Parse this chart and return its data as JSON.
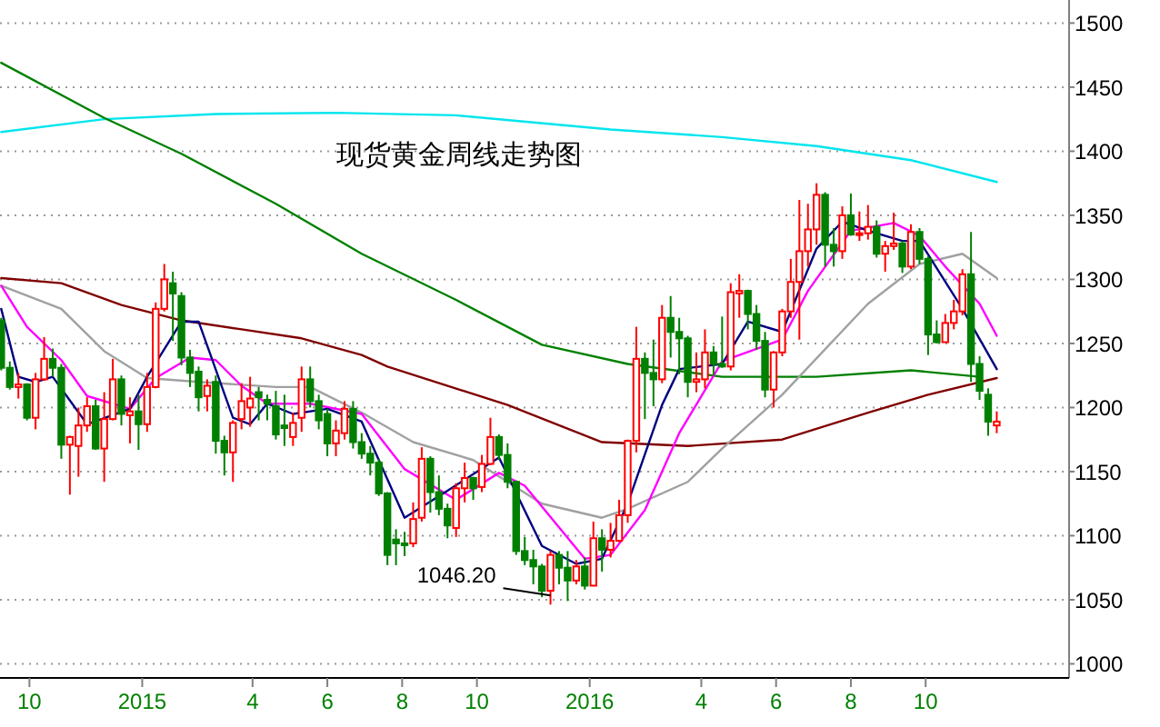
{
  "chart_data": {
    "type": "candlestick",
    "title": "现货黄金周线走势图",
    "xlim": [
      "2014-09-07",
      "2017-01-26"
    ],
    "ylim": [
      989,
      1518
    ],
    "xticks": [
      {
        "value": "2014-10-01",
        "label": "10"
      },
      {
        "value": "2015-01-01",
        "label": "2015"
      },
      {
        "value": "2015-04-01",
        "label": "4"
      },
      {
        "value": "2015-06-01",
        "label": "6"
      },
      {
        "value": "2015-08-01",
        "label": "8"
      },
      {
        "value": "2015-10-01",
        "label": "10"
      },
      {
        "value": "2016-01-01",
        "label": "2016"
      },
      {
        "value": "2016-04-01",
        "label": "4"
      },
      {
        "value": "2016-06-01",
        "label": "6"
      },
      {
        "value": "2016-08-01",
        "label": "8"
      },
      {
        "value": "2016-10-01",
        "label": "10"
      }
    ],
    "yticks": [
      1000,
      1050,
      1100,
      1150,
      1200,
      1250,
      1300,
      1350,
      1400,
      1450,
      1500
    ],
    "grid": "y",
    "annotations": [
      {
        "text": "1046.20",
        "x": "2015-11-30",
        "y": 1046.2
      }
    ],
    "x": [
      "2014-09-08",
      "2014-09-15",
      "2014-09-22",
      "2014-09-29",
      "2014-10-06",
      "2014-10-13",
      "2014-10-20",
      "2014-10-27",
      "2014-11-03",
      "2014-11-10",
      "2014-11-17",
      "2014-11-24",
      "2014-12-01",
      "2014-12-08",
      "2014-12-15",
      "2014-12-22",
      "2014-12-29",
      "2015-01-05",
      "2015-01-12",
      "2015-01-19",
      "2015-01-26",
      "2015-02-02",
      "2015-02-09",
      "2015-02-16",
      "2015-02-23",
      "2015-03-02",
      "2015-03-09",
      "2015-03-16",
      "2015-03-23",
      "2015-03-30",
      "2015-04-06",
      "2015-04-13",
      "2015-04-20",
      "2015-04-27",
      "2015-05-04",
      "2015-05-11",
      "2015-05-18",
      "2015-05-25",
      "2015-06-01",
      "2015-06-08",
      "2015-06-15",
      "2015-06-22",
      "2015-06-29",
      "2015-07-06",
      "2015-07-13",
      "2015-07-20",
      "2015-07-27",
      "2015-08-03",
      "2015-08-10",
      "2015-08-17",
      "2015-08-24",
      "2015-08-31",
      "2015-09-07",
      "2015-09-14",
      "2015-09-21",
      "2015-09-28",
      "2015-10-05",
      "2015-10-12",
      "2015-10-19",
      "2015-10-26",
      "2015-11-02",
      "2015-11-09",
      "2015-11-16",
      "2015-11-23",
      "2015-11-30",
      "2015-12-07",
      "2015-12-14",
      "2015-12-21",
      "2015-12-28",
      "2016-01-04",
      "2016-01-11",
      "2016-01-18",
      "2016-01-25",
      "2016-02-01",
      "2016-02-08",
      "2016-02-15",
      "2016-02-22",
      "2016-02-29",
      "2016-03-07",
      "2016-03-14",
      "2016-03-21",
      "2016-03-28",
      "2016-04-04",
      "2016-04-11",
      "2016-04-18",
      "2016-04-25",
      "2016-05-02",
      "2016-05-09",
      "2016-05-16",
      "2016-05-23",
      "2016-05-30",
      "2016-06-06",
      "2016-06-13",
      "2016-06-20",
      "2016-06-27",
      "2016-07-04",
      "2016-07-11",
      "2016-07-18",
      "2016-07-25",
      "2016-08-01",
      "2016-08-08",
      "2016-08-15",
      "2016-08-22",
      "2016-08-29",
      "2016-09-05",
      "2016-09-12",
      "2016-09-19",
      "2016-09-26",
      "2016-10-03",
      "2016-10-10",
      "2016-10-17",
      "2016-10-24",
      "2016-10-31",
      "2016-11-07",
      "2016-11-14",
      "2016-11-21",
      "2016-11-28"
    ],
    "ohlc": [
      [
        1268,
        1270,
        1229,
        1231
      ],
      [
        1231,
        1236,
        1214,
        1216
      ],
      [
        1216,
        1227,
        1207,
        1218
      ],
      [
        1218,
        1219,
        1190,
        1192
      ],
      [
        1192,
        1227,
        1183,
        1222
      ],
      [
        1222,
        1255,
        1221,
        1238
      ],
      [
        1238,
        1246,
        1224,
        1231
      ],
      [
        1231,
        1234,
        1160,
        1171
      ],
      [
        1171,
        1178,
        1132,
        1177
      ],
      [
        1170,
        1200,
        1146,
        1186
      ],
      [
        1186,
        1208,
        1181,
        1201
      ],
      [
        1201,
        1206,
        1167,
        1168
      ],
      [
        1168,
        1212,
        1142,
        1191
      ],
      [
        1191,
        1238,
        1190,
        1222
      ],
      [
        1222,
        1225,
        1186,
        1195
      ],
      [
        1194,
        1208,
        1172,
        1197
      ],
      [
        1197,
        1210,
        1167,
        1187
      ],
      [
        1187,
        1227,
        1181,
        1216
      ],
      [
        1216,
        1282,
        1215,
        1277
      ],
      [
        1277,
        1312,
        1275,
        1300
      ],
      [
        1297,
        1306,
        1252,
        1289
      ],
      [
        1287,
        1290,
        1233,
        1239
      ],
      [
        1239,
        1245,
        1216,
        1227
      ],
      [
        1228,
        1232,
        1197,
        1208
      ],
      [
        1209,
        1222,
        1197,
        1217
      ],
      [
        1220,
        1225,
        1164,
        1174
      ],
      [
        1174,
        1178,
        1147,
        1165
      ],
      [
        1165,
        1190,
        1142,
        1188
      ],
      [
        1191,
        1219,
        1183,
        1205
      ],
      [
        1200,
        1224,
        1185,
        1207
      ],
      [
        1212,
        1216,
        1190,
        1208
      ],
      [
        1206,
        1210,
        1190,
        1203
      ],
      [
        1201,
        1213,
        1175,
        1179
      ],
      [
        1186,
        1210,
        1170,
        1184
      ],
      [
        1177,
        1196,
        1170,
        1188
      ],
      [
        1192,
        1232,
        1181,
        1222
      ],
      [
        1222,
        1232,
        1200,
        1205
      ],
      [
        1205,
        1210,
        1183,
        1190
      ],
      [
        1195,
        1199,
        1162,
        1172
      ],
      [
        1172,
        1190,
        1162,
        1182
      ],
      [
        1180,
        1205,
        1175,
        1199
      ],
      [
        1199,
        1205,
        1168,
        1173
      ],
      [
        1173,
        1180,
        1160,
        1164
      ],
      [
        1164,
        1170,
        1147,
        1157
      ],
      [
        1157,
        1160,
        1131,
        1133
      ],
      [
        1133,
        1134,
        1077,
        1085
      ],
      [
        1097,
        1105,
        1077,
        1094
      ],
      [
        1094,
        1103,
        1084,
        1093
      ],
      [
        1094,
        1126,
        1091,
        1113
      ],
      [
        1114,
        1169,
        1111,
        1160
      ],
      [
        1160,
        1162,
        1118,
        1134
      ],
      [
        1134,
        1147,
        1116,
        1121
      ],
      [
        1121,
        1125,
        1098,
        1108
      ],
      [
        1106,
        1141,
        1099,
        1137
      ],
      [
        1137,
        1157,
        1126,
        1145
      ],
      [
        1145,
        1146,
        1128,
        1137
      ],
      [
        1138,
        1163,
        1134,
        1156
      ],
      [
        1156,
        1192,
        1155,
        1177
      ],
      [
        1177,
        1179,
        1159,
        1163
      ],
      [
        1163,
        1172,
        1137,
        1142
      ],
      [
        1142,
        1143,
        1085,
        1088
      ],
      [
        1088,
        1099,
        1077,
        1081
      ],
      [
        1081,
        1089,
        1062,
        1076
      ],
      [
        1076,
        1078,
        1052,
        1057
      ],
      [
        1057,
        1088,
        1046.2,
        1085
      ],
      [
        1085,
        1088,
        1062,
        1075
      ],
      [
        1075,
        1088,
        1049,
        1065
      ],
      [
        1065,
        1081,
        1062,
        1076
      ],
      [
        1076,
        1083,
        1058,
        1061
      ],
      [
        1061,
        1111,
        1061,
        1098
      ],
      [
        1098,
        1105,
        1072,
        1089
      ],
      [
        1089,
        1110,
        1083,
        1096
      ],
      [
        1096,
        1128,
        1095,
        1116
      ],
      [
        1116,
        1175,
        1110,
        1174
      ],
      [
        1174,
        1263,
        1165,
        1238
      ],
      [
        1238,
        1243,
        1191,
        1227
      ],
      [
        1227,
        1253,
        1201,
        1222
      ],
      [
        1222,
        1280,
        1219,
        1270
      ],
      [
        1270,
        1287,
        1239,
        1259
      ],
      [
        1259,
        1270,
        1226,
        1254
      ],
      [
        1254,
        1256,
        1208,
        1220
      ],
      [
        1220,
        1243,
        1212,
        1222
      ],
      [
        1222,
        1261,
        1215,
        1243
      ],
      [
        1243,
        1248,
        1225,
        1234
      ],
      [
        1234,
        1271,
        1231,
        1232
      ],
      [
        1232,
        1297,
        1229,
        1290
      ],
      [
        1289,
        1304,
        1270,
        1291
      ],
      [
        1291,
        1292,
        1261,
        1273
      ],
      [
        1273,
        1280,
        1245,
        1252
      ],
      [
        1252,
        1259,
        1208,
        1214
      ],
      [
        1214,
        1244,
        1200,
        1243
      ],
      [
        1243,
        1277,
        1240,
        1275
      ],
      [
        1275,
        1316,
        1270,
        1298
      ],
      [
        1298,
        1362,
        1253,
        1322
      ],
      [
        1322,
        1359,
        1310,
        1339
      ],
      [
        1339,
        1375,
        1327,
        1366
      ],
      [
        1366,
        1368,
        1310,
        1327
      ],
      [
        1327,
        1340,
        1310,
        1322
      ],
      [
        1322,
        1357,
        1316,
        1350
      ],
      [
        1350,
        1367,
        1334,
        1335
      ],
      [
        1335,
        1353,
        1330,
        1336
      ],
      [
        1336,
        1358,
        1331,
        1341
      ],
      [
        1341,
        1346,
        1317,
        1320
      ],
      [
        1320,
        1330,
        1306,
        1326
      ],
      [
        1326,
        1352,
        1323,
        1328
      ],
      [
        1328,
        1330,
        1305,
        1310
      ],
      [
        1310,
        1343,
        1308,
        1337
      ],
      [
        1337,
        1340,
        1312,
        1316
      ],
      [
        1316,
        1318,
        1241,
        1257
      ],
      [
        1257,
        1268,
        1250,
        1251
      ],
      [
        1251,
        1273,
        1251,
        1266
      ],
      [
        1266,
        1284,
        1261,
        1275
      ],
      [
        1275,
        1308,
        1272,
        1304
      ],
      [
        1304,
        1337,
        1220,
        1234
      ],
      [
        1234,
        1240,
        1206,
        1213
      ],
      [
        1210,
        1215,
        1178,
        1189
      ],
      [
        1186,
        1197,
        1180,
        1189
      ]
    ],
    "colors": [
      "#008000",
      "#008000",
      "#ff0000",
      "#008000",
      "#ff0000",
      "#ff0000",
      "#008000",
      "#008000",
      "#ff0000",
      "#ff0000",
      "#ff0000",
      "#008000",
      "#ff0000",
      "#ff0000",
      "#008000",
      "#ff0000",
      "#008000",
      "#ff0000",
      "#ff0000",
      "#ff0000",
      "#008000",
      "#008000",
      "#008000",
      "#008000",
      "#ff0000",
      "#008000",
      "#008000",
      "#ff0000",
      "#ff0000",
      "#ff0000",
      "#008000",
      "#008000",
      "#008000",
      "#008000",
      "#ff0000",
      "#ff0000",
      "#008000",
      "#008000",
      "#008000",
      "#ff0000",
      "#ff0000",
      "#008000",
      "#008000",
      "#008000",
      "#008000",
      "#008000",
      "#008000",
      "#008000",
      "#ff0000",
      "#ff0000",
      "#008000",
      "#008000",
      "#008000",
      "#ff0000",
      "#ff0000",
      "#008000",
      "#ff0000",
      "#ff0000",
      "#008000",
      "#008000",
      "#008000",
      "#008000",
      "#008000",
      "#008000",
      "#ff0000",
      "#008000",
      "#008000",
      "#ff0000",
      "#008000",
      "#ff0000",
      "#008000",
      "#ff0000",
      "#ff0000",
      "#ff0000",
      "#ff0000",
      "#008000",
      "#008000",
      "#ff0000",
      "#008000",
      "#008000",
      "#008000",
      "#ff0000",
      "#ff0000",
      "#008000",
      "#008000",
      "#ff0000",
      "#ff0000",
      "#008000",
      "#008000",
      "#008000",
      "#ff0000",
      "#ff0000",
      "#ff0000",
      "#ff0000",
      "#ff0000",
      "#ff0000",
      "#008000",
      "#008000",
      "#ff0000",
      "#008000",
      "#ff0000",
      "#ff0000",
      "#008000",
      "#ff0000",
      "#ff0000",
      "#008000",
      "#ff0000",
      "#008000",
      "#008000",
      "#008000",
      "#ff0000",
      "#ff0000",
      "#ff0000",
      "#008000",
      "#008000",
      "#008000",
      "#ff0000"
    ],
    "series": [
      {
        "type": "line",
        "color": "#00e5ee",
        "x": [
          "2014-09-08",
          "2014-12-01",
          "2015-03-02",
          "2015-06-08",
          "2015-09-14",
          "2016-01-18",
          "2016-04-18",
          "2016-07-04",
          "2016-09-19",
          "2016-11-28"
        ],
        "values": [
          1415,
          1425,
          1429,
          1430,
          1428,
          1417,
          1411,
          1404,
          1393,
          1376
        ]
      },
      {
        "type": "line",
        "color": "#008000",
        "x": [
          "2014-09-08",
          "2014-12-01",
          "2015-02-02",
          "2015-04-20",
          "2015-06-29",
          "2015-09-14",
          "2015-11-23",
          "2016-02-01",
          "2016-04-18",
          "2016-07-04",
          "2016-09-19",
          "2016-11-14"
        ],
        "values": [
          1469,
          1426,
          1398,
          1359,
          1320,
          1284,
          1249,
          1234,
          1224,
          1224,
          1229,
          1224
        ]
      },
      {
        "type": "line",
        "color": "#800000",
        "x": [
          "2014-09-08",
          "2014-10-27",
          "2014-12-15",
          "2015-02-02",
          "2015-03-23",
          "2015-05-11",
          "2015-06-29",
          "2015-07-20",
          "2015-10-26",
          "2016-01-11",
          "2016-03-21",
          "2016-06-06",
          "2016-08-15",
          "2016-10-03",
          "2016-11-28"
        ],
        "values": [
          1301,
          1297,
          1280,
          1268,
          1261,
          1254,
          1241,
          1232,
          1202,
          1173,
          1170,
          1175,
          1196,
          1210,
          1223
        ]
      },
      {
        "type": "line",
        "color": "#a0a0a0",
        "x": [
          "2014-09-08",
          "2014-10-27",
          "2014-12-01",
          "2015-01-05",
          "2015-02-16",
          "2015-04-20",
          "2015-05-18",
          "2015-06-29",
          "2015-08-10",
          "2015-09-28",
          "2015-11-23",
          "2016-01-11",
          "2016-02-01",
          "2016-03-21",
          "2016-04-18",
          "2016-06-06",
          "2016-08-15",
          "2016-09-26",
          "2016-10-31",
          "2016-11-28"
        ],
        "values": [
          1295,
          1277,
          1244,
          1223,
          1220,
          1216,
          1216,
          1196,
          1173,
          1159,
          1125,
          1114,
          1121,
          1142,
          1168,
          1210,
          1281,
          1312,
          1320,
          1301
        ]
      },
      {
        "type": "line",
        "color": "#ff00ff",
        "x": [
          "2014-09-08",
          "2014-09-29",
          "2014-10-27",
          "2014-11-17",
          "2014-12-22",
          "2015-01-12",
          "2015-02-09",
          "2015-03-02",
          "2015-03-23",
          "2015-04-13",
          "2015-05-18",
          "2015-06-29",
          "2015-08-03",
          "2015-09-14",
          "2015-10-19",
          "2015-11-09",
          "2015-12-28",
          "2016-01-18",
          "2016-02-15",
          "2016-03-14",
          "2016-04-18",
          "2016-06-06",
          "2016-06-27",
          "2016-08-01",
          "2016-09-05",
          "2016-09-26",
          "2016-10-17",
          "2016-11-14",
          "2016-11-28"
        ],
        "values": [
          1295,
          1263,
          1237,
          1209,
          1199,
          1223,
          1239,
          1237,
          1217,
          1203,
          1203,
          1195,
          1152,
          1128,
          1149,
          1139,
          1082,
          1085,
          1120,
          1180,
          1236,
          1253,
          1291,
          1338,
          1344,
          1334,
          1310,
          1281,
          1256
        ]
      },
      {
        "type": "line",
        "color": "#000080",
        "x": [
          "2014-09-08",
          "2014-09-22",
          "2014-10-06",
          "2014-10-20",
          "2014-11-17",
          "2014-12-22",
          "2015-01-05",
          "2015-02-02",
          "2015-02-16",
          "2015-03-16",
          "2015-03-30",
          "2015-04-13",
          "2015-05-04",
          "2015-06-01",
          "2015-06-29",
          "2015-08-03",
          "2015-09-07",
          "2015-10-19",
          "2015-11-23",
          "2015-12-21",
          "2016-01-11",
          "2016-02-01",
          "2016-02-29",
          "2016-03-14",
          "2016-04-18",
          "2016-05-09",
          "2016-06-06",
          "2016-07-04",
          "2016-07-25",
          "2016-08-15",
          "2016-09-12",
          "2016-09-26",
          "2016-10-31",
          "2016-11-28"
        ],
        "values": [
          1277,
          1224,
          1220,
          1224,
          1187,
          1199,
          1224,
          1267,
          1267,
          1192,
          1187,
          1203,
          1195,
          1199,
          1189,
          1114,
          1135,
          1161,
          1092,
          1078,
          1082,
          1125,
          1202,
          1230,
          1234,
          1267,
          1259,
          1324,
          1345,
          1338,
          1330,
          1330,
          1277,
          1230
        ]
      }
    ]
  }
}
